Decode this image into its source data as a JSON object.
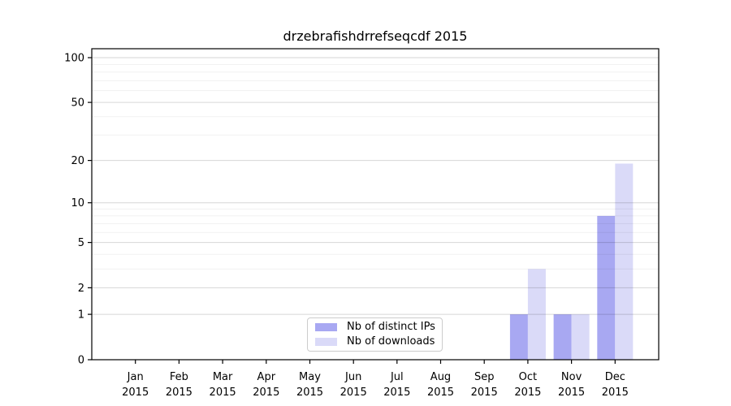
{
  "chart_data": {
    "type": "bar",
    "title": "drzebrafishdrrefseqcdf 2015",
    "year": "2015",
    "categories": [
      "Jan",
      "Feb",
      "Mar",
      "Apr",
      "May",
      "Jun",
      "Jul",
      "Aug",
      "Sep",
      "Oct",
      "Nov",
      "Dec"
    ],
    "series": [
      {
        "name": "Nb of distinct IPs",
        "color": "#a8a8f2",
        "values": [
          0,
          0,
          0,
          0,
          0,
          0,
          0,
          0,
          0,
          1,
          1,
          8
        ]
      },
      {
        "name": "Nb of downloads",
        "color": "#dadaf8",
        "values": [
          0,
          0,
          0,
          0,
          0,
          0,
          0,
          0,
          0,
          3,
          1,
          19
        ]
      }
    ],
    "y_ticks": [
      0,
      1,
      2,
      5,
      10,
      20,
      50,
      100
    ],
    "y_minor_ticks": [
      3,
      4,
      6,
      7,
      8,
      9,
      30,
      40,
      60,
      70,
      80,
      90
    ],
    "yscale": "log1p",
    "ylim": [
      0,
      115
    ],
    "xlabel": "",
    "ylabel": "",
    "grid": true,
    "legend_position": "lower center inside plot"
  },
  "colors": {
    "background": "#ffffff",
    "axis": "#000000",
    "grid_major": "rgba(0,0,0,0.16)",
    "grid_minor": "rgba(0,0,0,0.06)",
    "text": "#000000"
  }
}
